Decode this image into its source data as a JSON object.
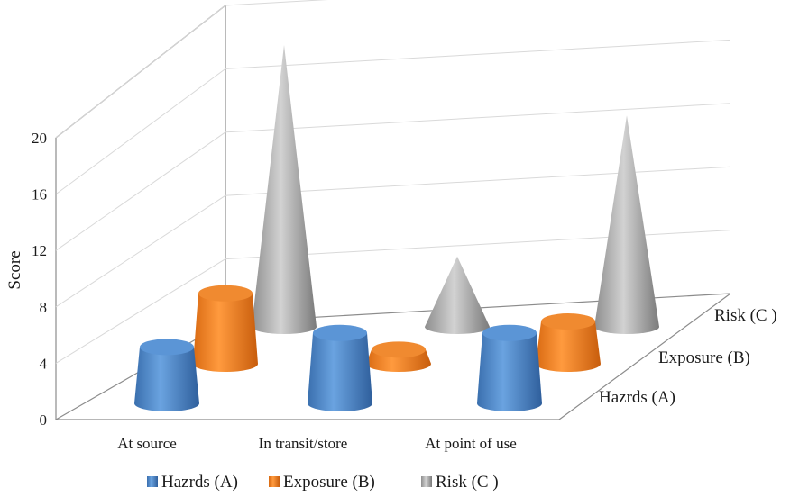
{
  "chart_data": {
    "type": "bar",
    "style": "3d-cone-and-cylinder",
    "ylabel": "Score",
    "ylim": [
      0,
      20
    ],
    "yticks": [
      0,
      4,
      8,
      12,
      16,
      20
    ],
    "grid": true,
    "categories": [
      "At source",
      "In transit/store",
      "At point of use"
    ],
    "series": [
      {
        "name": "Hazrds (A)",
        "shape": "cylinder",
        "color": "#4f86c6",
        "values": [
          4,
          5,
          5
        ]
      },
      {
        "name": "Exposure  (B)",
        "shape": "cylinder",
        "color": "#ee7d22",
        "values": [
          5,
          1,
          3
        ]
      },
      {
        "name": "Risk (C )",
        "shape": "cone",
        "color": "#a8a8a8",
        "values": [
          20,
          5,
          15
        ]
      }
    ],
    "legend_position": "bottom"
  }
}
